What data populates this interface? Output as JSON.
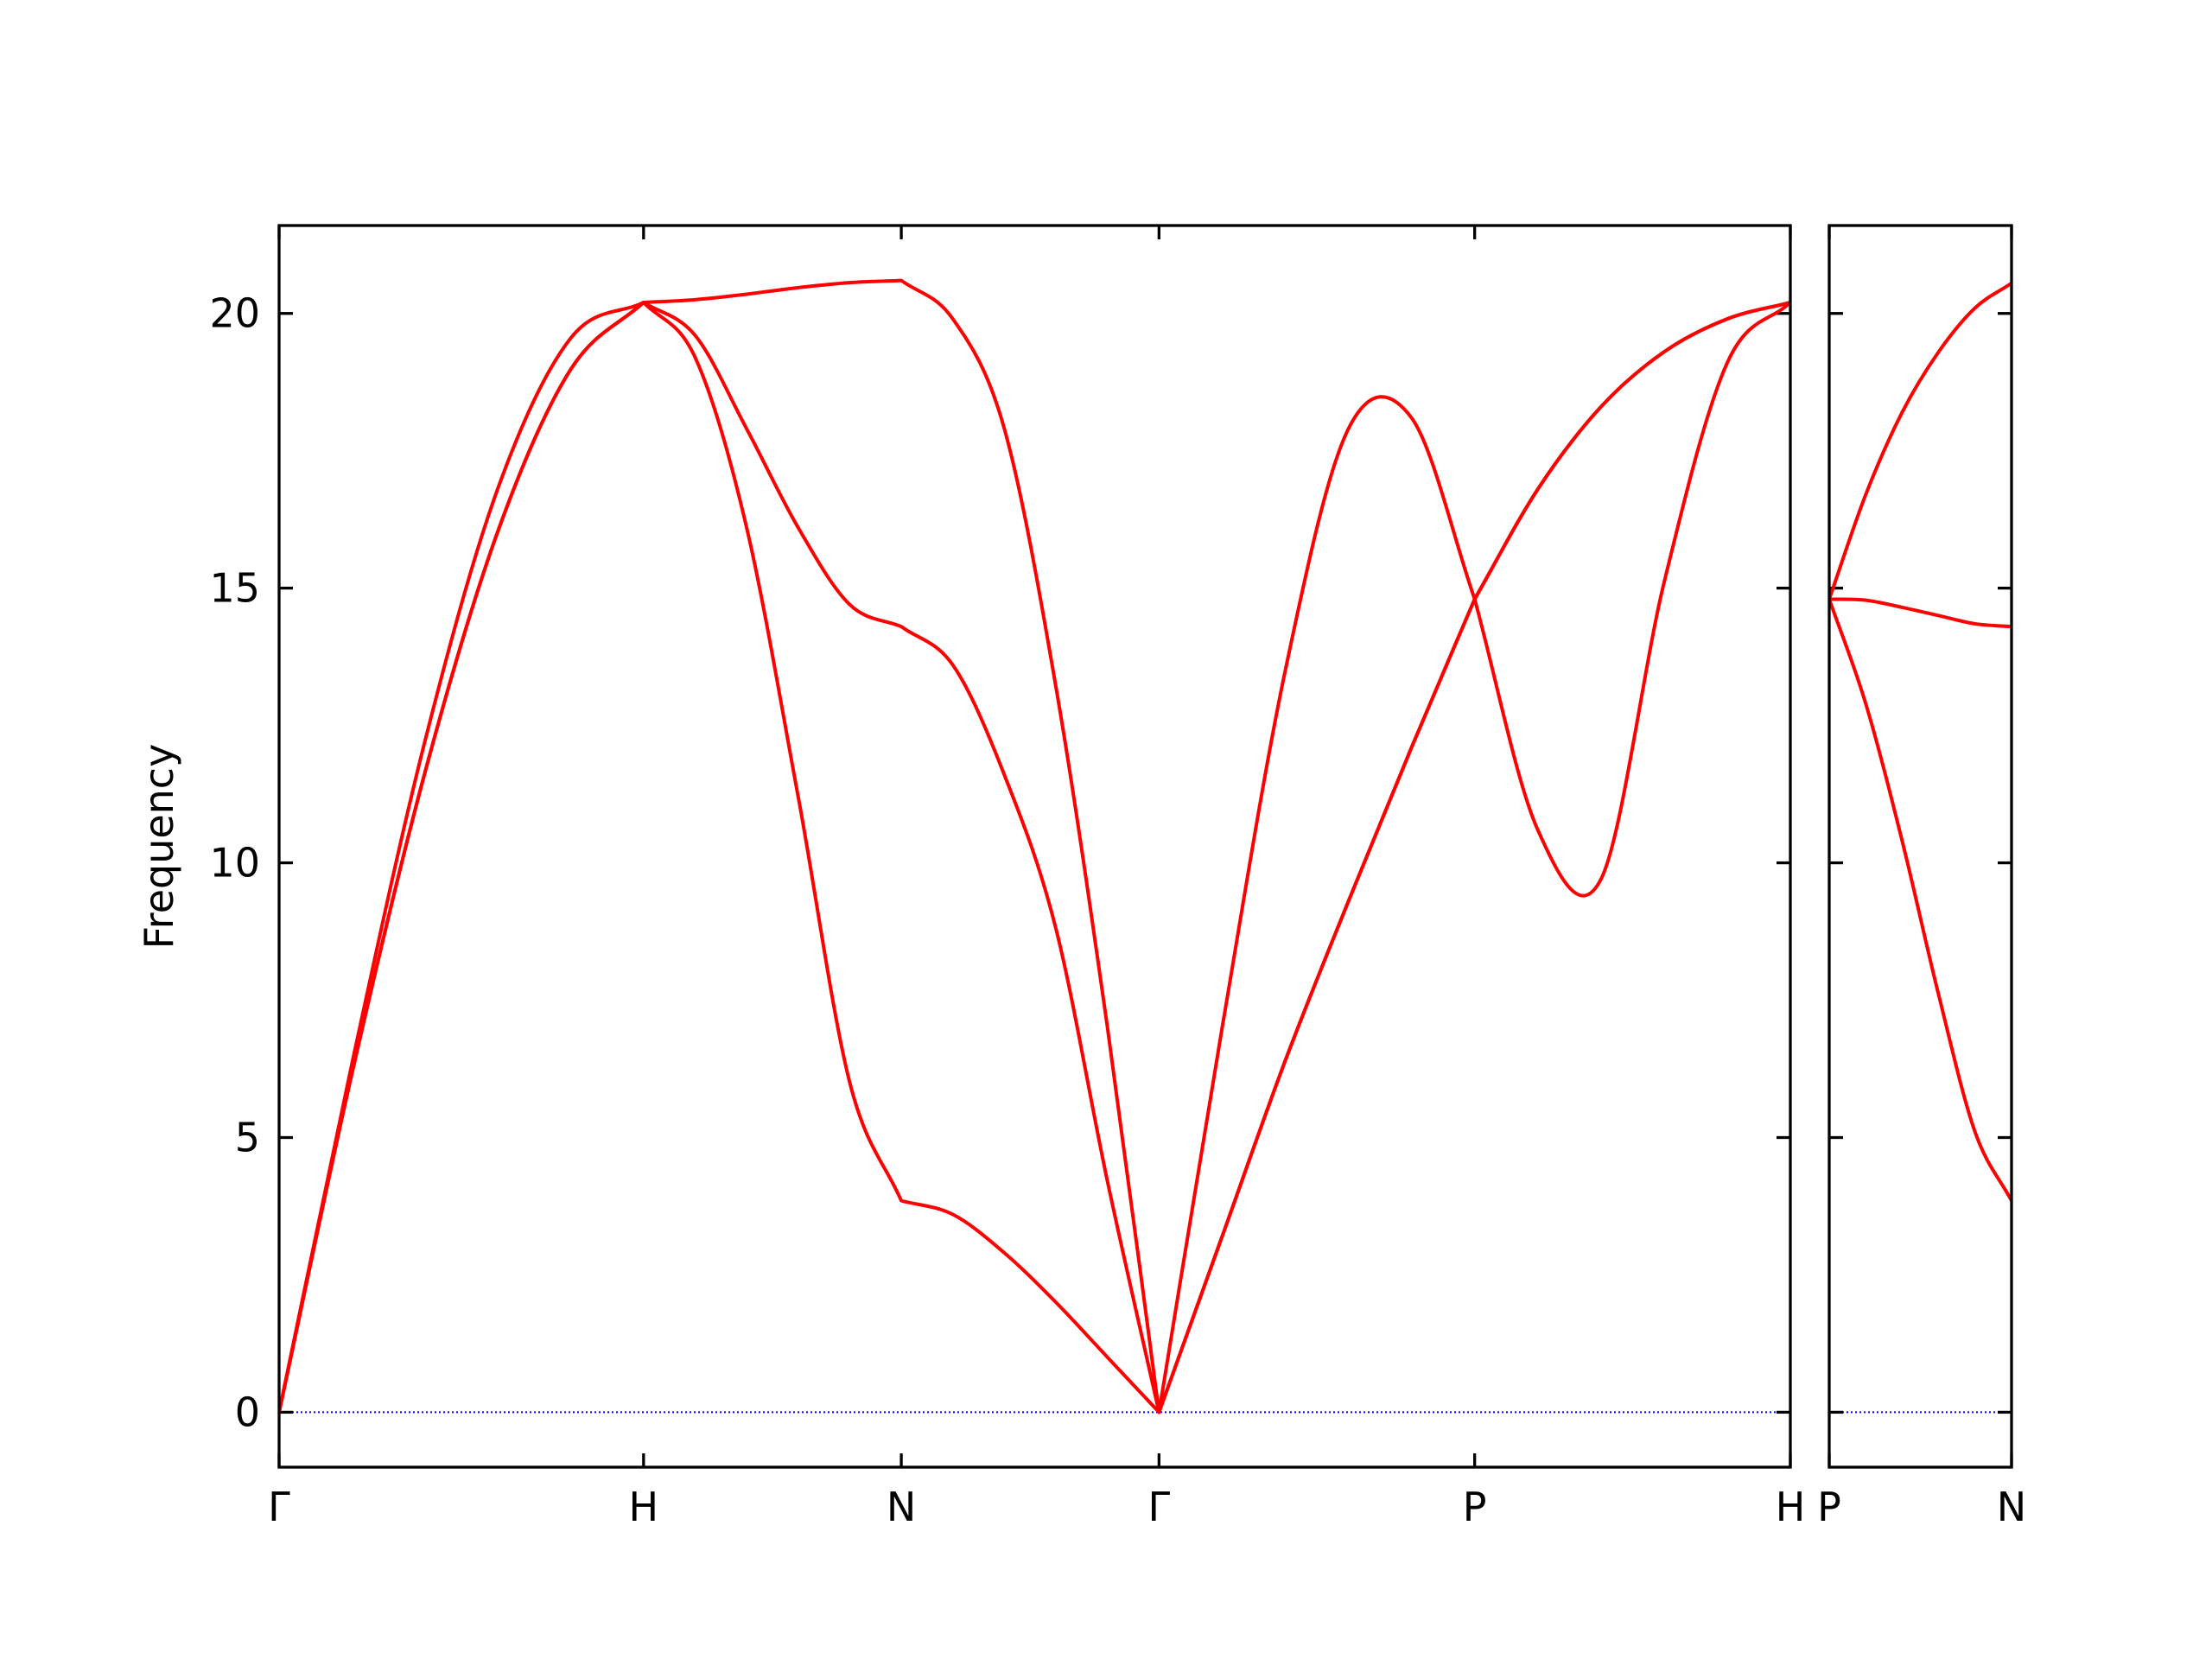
{
  "chart_data": [
    {
      "type": "line",
      "ylabel": "Frequency",
      "x": [
        0,
        0.2,
        0.4,
        0.6,
        0.8,
        1,
        1.1414,
        1.2828,
        1.4243,
        1.5657,
        1.7071,
        1.8485,
        1.9899,
        2.1314,
        2.2728,
        2.4142,
        2.5874,
        2.7606,
        2.9338,
        3.107,
        3.2802,
        3.4534,
        3.6266,
        3.7998,
        3.9731,
        4.1463
      ],
      "series": [
        {
          "color": "#ff0000",
          "values": [
            0,
            6.17,
            11.64,
            16.03,
            18.98,
            20.2,
            19.2,
            16.1,
            11.2,
            6.0,
            3.85,
            3.6,
            2.9,
            2.0,
            1.0,
            0,
            3.2,
            6.4,
            9.3,
            12.1,
            14.8,
            16.8,
            18.3,
            19.3,
            19.9,
            20.2
          ]
        },
        {
          "color": "#ff0000",
          "values": [
            0,
            6.17,
            11.64,
            16.03,
            18.98,
            20.2,
            19.6,
            17.9,
            16.1,
            14.7,
            14.3,
            13.6,
            11.6,
            8.8,
            4.2,
            0,
            3.2,
            6.4,
            9.3,
            12.1,
            14.8,
            16.8,
            18.3,
            19.3,
            19.9,
            20.2
          ]
        },
        {
          "color": "#ff0000",
          "values": [
            0,
            6.35,
            12.21,
            16.81,
            19.55,
            20.2,
            20.25,
            20.35,
            20.47,
            20.56,
            20.6,
            19.9,
            17.9,
            13.2,
            7.0,
            0,
            7.0,
            13.5,
            17.9,
            18.1,
            14.8,
            10.6,
            9.7,
            15.1,
            19.1,
            20.2
          ]
        }
      ],
      "xlim": [
        0,
        4.1463
      ],
      "xticks": [
        {
          "value": 0,
          "label": "Γ"
        },
        {
          "value": 1,
          "label": "H"
        },
        {
          "value": 1.7071,
          "label": "N"
        },
        {
          "value": 2.4142,
          "label": "Γ"
        },
        {
          "value": 3.2802,
          "label": "P"
        },
        {
          "value": 4.1463,
          "label": "H"
        }
      ],
      "ylim": [
        -1,
        21.6
      ],
      "yticks": [
        0,
        5,
        10,
        15,
        20
      ],
      "show_ytick_labels": true,
      "zero_line_color": "#0000ff"
    },
    {
      "type": "line",
      "x": [
        0,
        0.1,
        0.2,
        0.3,
        0.4,
        0.5
      ],
      "series": [
        {
          "color": "#ff0000",
          "values": [
            14.8,
            12.9,
            10.4,
            7.6,
            5.1,
            3.85
          ]
        },
        {
          "color": "#ff0000",
          "values": [
            14.8,
            14.78,
            14.65,
            14.5,
            14.35,
            14.3
          ]
        },
        {
          "color": "#ff0000",
          "values": [
            14.8,
            16.7,
            18.2,
            19.3,
            20.1,
            20.55
          ]
        }
      ],
      "xlim": [
        0,
        0.5
      ],
      "xticks": [
        {
          "value": 0,
          "label": "P"
        },
        {
          "value": 0.5,
          "label": "N"
        }
      ],
      "ylim": [
        -1,
        21.6
      ],
      "yticks": [
        0,
        5,
        10,
        15,
        20
      ],
      "show_ytick_labels": false,
      "zero_line_color": "#0000ff"
    }
  ]
}
